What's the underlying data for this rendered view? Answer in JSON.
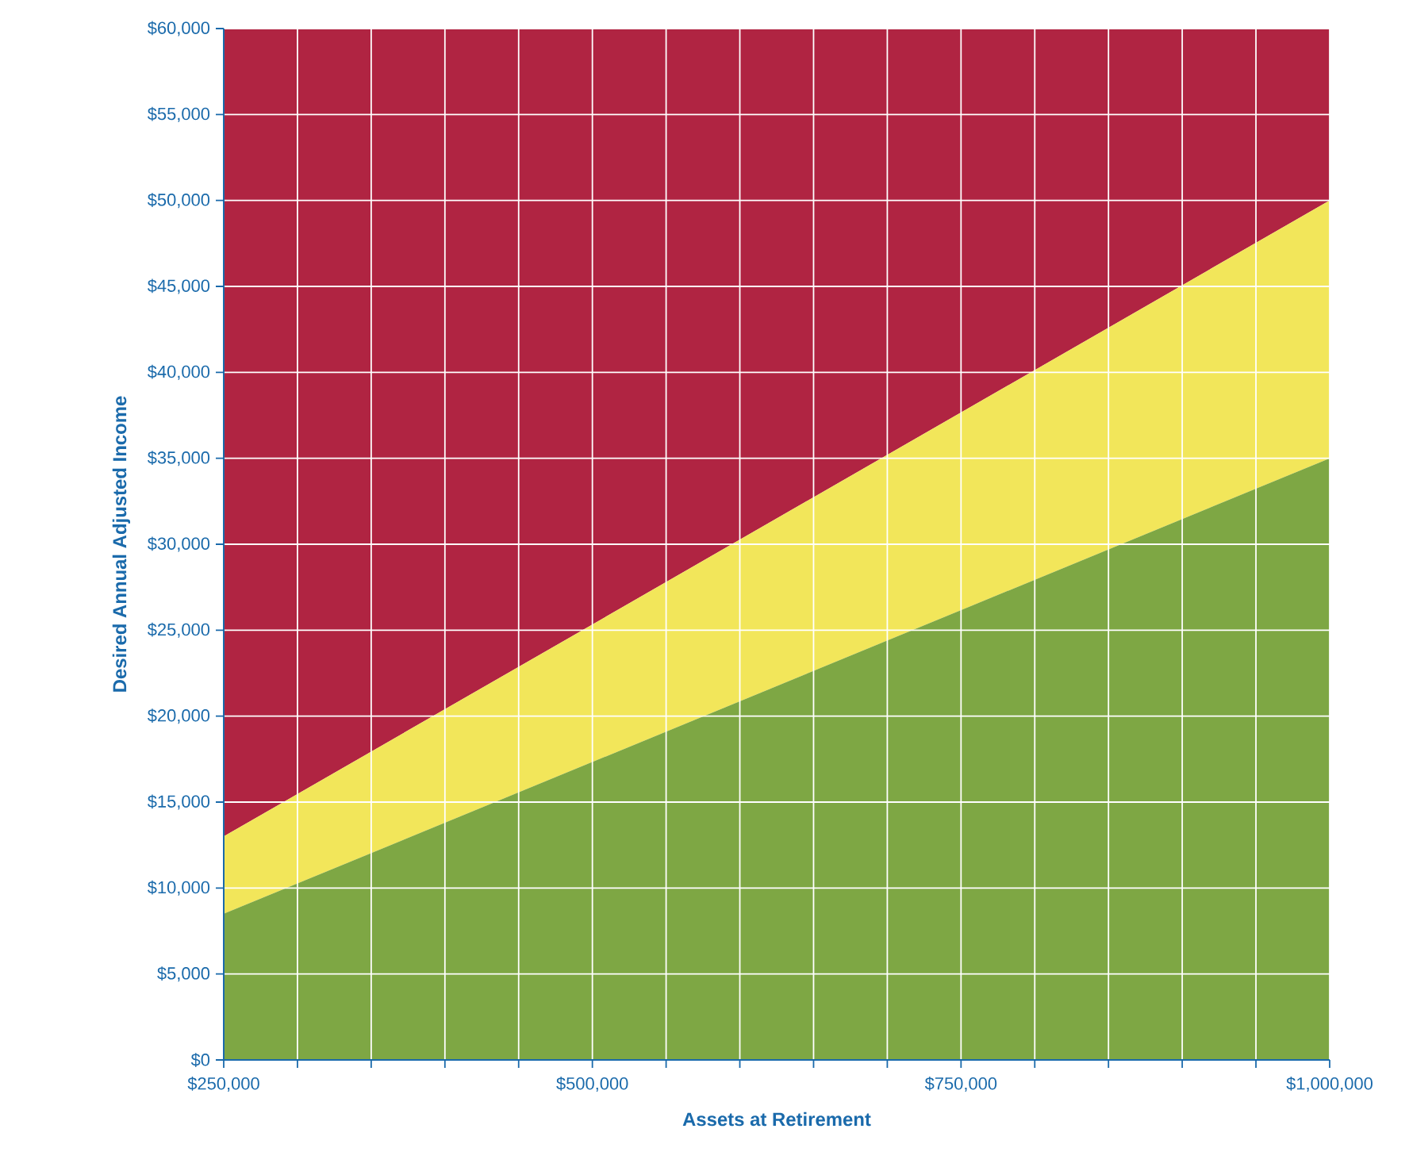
{
  "chart_data": {
    "type": "area",
    "stacked": true,
    "xlabel": "Assets at Retirement",
    "ylabel": "Desired Annual Adjusted Income",
    "x": [
      250000,
      1000000
    ],
    "series": [
      {
        "color": "#7ea744",
        "values": [
          8500,
          35000
        ]
      },
      {
        "color": "#f2e65a",
        "values": [
          4500,
          15000
        ]
      },
      {
        "color": "#b02442",
        "values": [
          47000,
          10000
        ]
      }
    ],
    "xlim": [
      250000,
      1000000
    ],
    "xticks": [
      {
        "value": 250000,
        "label": "$250,000"
      },
      {
        "value": 300000,
        "label": null
      },
      {
        "value": 350000,
        "label": null
      },
      {
        "value": 400000,
        "label": null
      },
      {
        "value": 450000,
        "label": null
      },
      {
        "value": 500000,
        "label": "$500,000"
      },
      {
        "value": 550000,
        "label": null
      },
      {
        "value": 600000,
        "label": null
      },
      {
        "value": 650000,
        "label": null
      },
      {
        "value": 700000,
        "label": null
      },
      {
        "value": 750000,
        "label": "$750,000"
      },
      {
        "value": 800000,
        "label": null
      },
      {
        "value": 850000,
        "label": null
      },
      {
        "value": 900000,
        "label": null
      },
      {
        "value": 950000,
        "label": null
      },
      {
        "value": 1000000,
        "label": "$1,000,000"
      }
    ],
    "ylim": [
      0,
      60000
    ],
    "yticks": [
      {
        "value": 0,
        "label": "$0"
      },
      {
        "value": 5000,
        "label": "$5,000"
      },
      {
        "value": 10000,
        "label": "$10,000"
      },
      {
        "value": 15000,
        "label": "$15,000"
      },
      {
        "value": 20000,
        "label": "$20,000"
      },
      {
        "value": 25000,
        "label": "$25,000"
      },
      {
        "value": 30000,
        "label": "$30,000"
      },
      {
        "value": 35000,
        "label": "$35,000"
      },
      {
        "value": 40000,
        "label": "$40,000"
      },
      {
        "value": 45000,
        "label": "$45,000"
      },
      {
        "value": 50000,
        "label": "$50,000"
      },
      {
        "value": 55000,
        "label": "$55,000"
      },
      {
        "value": 60000,
        "label": "$60,000"
      }
    ],
    "grid": true
  }
}
